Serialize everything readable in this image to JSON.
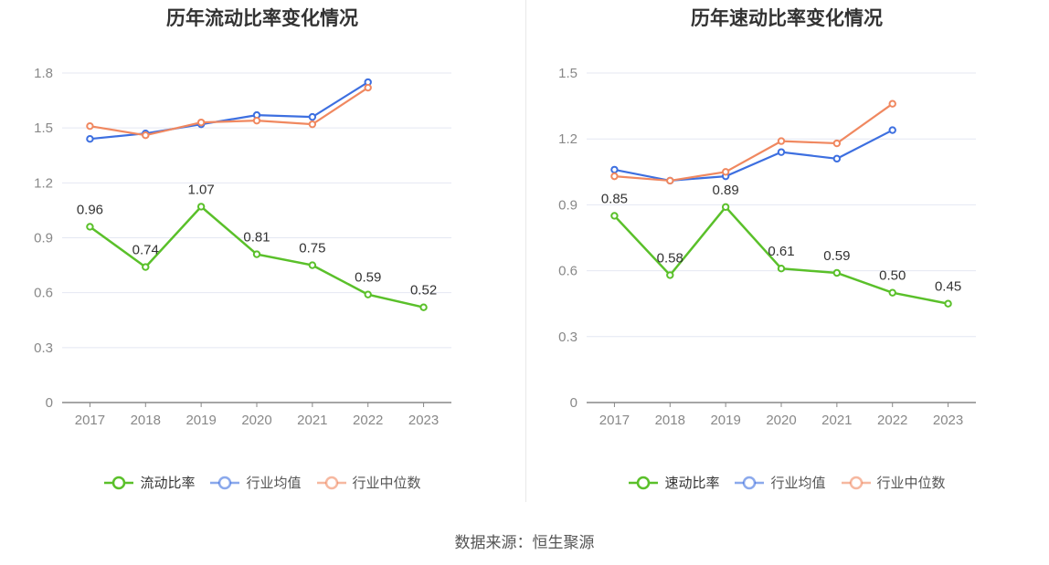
{
  "source_label": "数据来源：恒生聚源",
  "chart_data": [
    {
      "type": "line",
      "title": "历年流动比率变化情况",
      "categories": [
        "2017",
        "2018",
        "2019",
        "2020",
        "2021",
        "2022",
        "2023"
      ],
      "ylim": [
        0,
        1.8
      ],
      "yticks": [
        0,
        0.3,
        0.6,
        0.9,
        1.2,
        1.5,
        1.8
      ],
      "ytick_labels": [
        "0",
        "0.3",
        "0.6",
        "0.9",
        "1.2",
        "1.5",
        "1.8"
      ],
      "grid": true,
      "legend_position": "bottom",
      "series": [
        {
          "name": "流动比率",
          "color": "#5ac02a",
          "labels": true,
          "values": [
            0.96,
            0.74,
            1.07,
            0.81,
            0.75,
            0.59,
            0.52
          ],
          "value_labels": [
            "0.96",
            "0.74",
            "1.07",
            "0.81",
            "0.75",
            "0.59",
            "0.52"
          ]
        },
        {
          "name": "行业均值",
          "color": "#3d6fe0",
          "labels": false,
          "values": [
            1.44,
            1.47,
            1.52,
            1.57,
            1.56,
            1.75,
            null
          ]
        },
        {
          "name": "行业中位数",
          "color": "#f08860",
          "labels": false,
          "values": [
            1.51,
            1.46,
            1.53,
            1.54,
            1.52,
            1.72,
            null
          ]
        }
      ]
    },
    {
      "type": "line",
      "title": "历年速动比率变化情况",
      "categories": [
        "2017",
        "2018",
        "2019",
        "2020",
        "2021",
        "2022",
        "2023"
      ],
      "ylim": [
        0,
        1.5
      ],
      "yticks": [
        0,
        0.3,
        0.6,
        0.9,
        1.2,
        1.5
      ],
      "ytick_labels": [
        "0",
        "0.3",
        "0.6",
        "0.9",
        "1.2",
        "1.5"
      ],
      "grid": true,
      "legend_position": "bottom",
      "series": [
        {
          "name": "速动比率",
          "color": "#5ac02a",
          "labels": true,
          "values": [
            0.85,
            0.58,
            0.89,
            0.61,
            0.59,
            0.5,
            0.45
          ],
          "value_labels": [
            "0.85",
            "0.58",
            "0.89",
            "0.61",
            "0.59",
            "0.50",
            "0.45"
          ]
        },
        {
          "name": "行业均值",
          "color": "#3d6fe0",
          "labels": false,
          "values": [
            1.06,
            1.01,
            1.03,
            1.14,
            1.11,
            1.24,
            null
          ]
        },
        {
          "name": "行业中位数",
          "color": "#f08860",
          "labels": false,
          "values": [
            1.03,
            1.01,
            1.05,
            1.19,
            1.18,
            1.36,
            null
          ]
        }
      ]
    }
  ]
}
